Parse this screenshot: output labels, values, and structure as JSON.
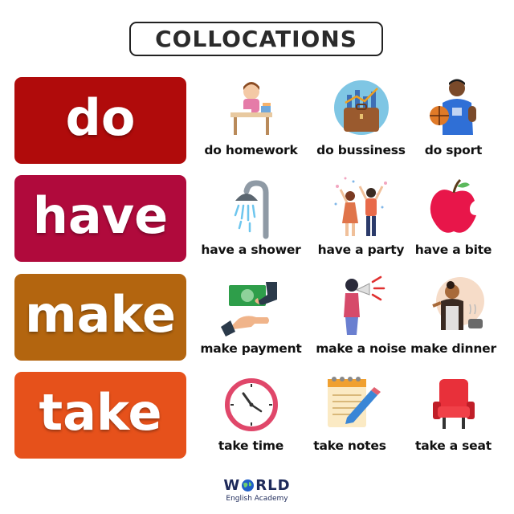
{
  "title": "COLLOCATIONS",
  "rows": [
    {
      "verb": "do",
      "color": "#b00b0b",
      "items": [
        {
          "label": "do homework",
          "icon": "student-desk-icon"
        },
        {
          "label": "do bussiness",
          "icon": "briefcase-chart-icon"
        },
        {
          "label": "do sport",
          "icon": "basketball-player-icon"
        }
      ]
    },
    {
      "verb": "have",
      "color": "#b00a3c",
      "items": [
        {
          "label": "have a shower",
          "icon": "shower-icon"
        },
        {
          "label": "have a party",
          "icon": "party-people-icon"
        },
        {
          "label": "have a bite",
          "icon": "bitten-apple-icon"
        }
      ]
    },
    {
      "verb": "make",
      "color": "#b3650f",
      "items": [
        {
          "label": "make payment",
          "icon": "cash-payment-icon"
        },
        {
          "label": "make a noise",
          "icon": "megaphone-woman-icon"
        },
        {
          "label": "make dinner",
          "icon": "cooking-woman-icon"
        }
      ]
    },
    {
      "verb": "take",
      "color": "#e6511b",
      "items": [
        {
          "label": "take time",
          "icon": "clock-icon"
        },
        {
          "label": "take notes",
          "icon": "notepad-pencil-icon"
        },
        {
          "label": "take a seat",
          "icon": "red-chair-icon"
        }
      ]
    }
  ],
  "logo": {
    "word_before": "W",
    "word_after": "RLD",
    "subtitle": "English Academy"
  }
}
